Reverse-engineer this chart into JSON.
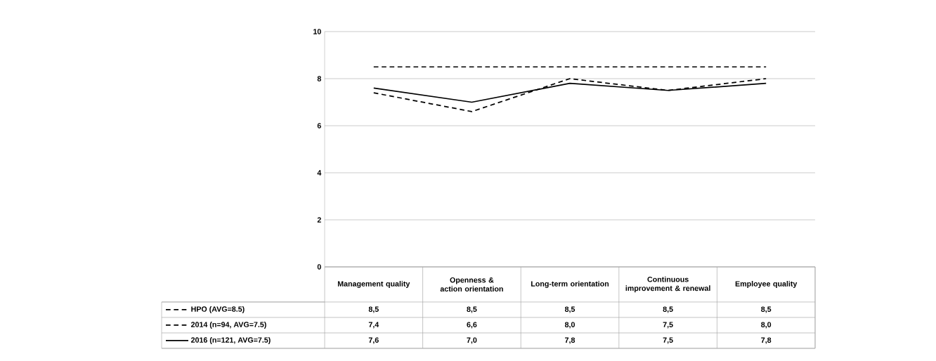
{
  "chart_data": {
    "type": "line",
    "categories": [
      "Management quality",
      "Openness & action orientation",
      "Long-term orientation",
      "Continuous improvement & renewal",
      "Employee quality"
    ],
    "series": [
      {
        "name": "HPO (AVG=8.5)",
        "color": "#000000",
        "line_style": "dashed",
        "values": [
          8.5,
          8.5,
          8.5,
          8.5,
          8.5
        ],
        "value_labels": [
          "8,5",
          "8,5",
          "8,5",
          "8,5",
          "8,5"
        ]
      },
      {
        "name": "2014 (n=94, AVG=7.5)",
        "color": "#000000",
        "line_style": "dashed",
        "values": [
          7.4,
          6.6,
          8.0,
          7.5,
          8.0
        ],
        "value_labels": [
          "7,4",
          "6,6",
          "8,0",
          "7,5",
          "8,0"
        ]
      },
      {
        "name": "2016 (n=121, AVG=7.5)",
        "color": "#000000",
        "line_style": "solid",
        "values": [
          7.6,
          7.0,
          7.8,
          7.5,
          7.8
        ],
        "value_labels": [
          "7,6",
          "7,0",
          "7,8",
          "7,5",
          "7,8"
        ]
      }
    ],
    "ylim": [
      0,
      10
    ],
    "yticks": [
      0,
      2,
      4,
      6,
      8,
      10
    ],
    "grid": "y",
    "legend": "bottom left",
    "marker": "none"
  }
}
